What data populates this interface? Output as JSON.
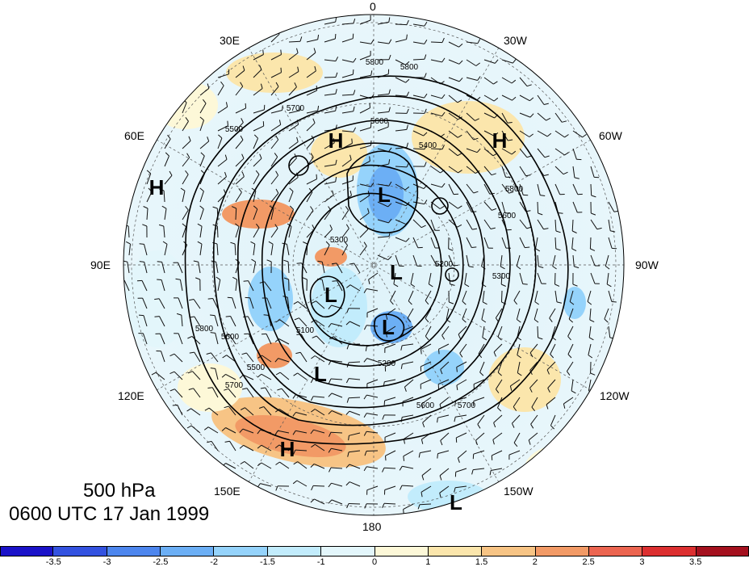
{
  "map": {
    "projection": "north-polar-stereographic",
    "level_label": "500 hPa",
    "time_label": "0600 UTC 17 Jan 1999",
    "longitude_labels": [
      "0",
      "30E",
      "60E",
      "90E",
      "120E",
      "150E",
      "180",
      "150W",
      "120W",
      "90W",
      "60W",
      "30W"
    ],
    "contour_labels": [
      "5800",
      "5800",
      "5700",
      "5600",
      "5500",
      "5400",
      "5300",
      "5200",
      "5100",
      "5500",
      "5600",
      "5700",
      "5800",
      "5300",
      "5200",
      "5600",
      "5800",
      "5700",
      "5600"
    ],
    "pressure_centers": [
      {
        "label": "H",
        "name": "high-center-scandinavia"
      },
      {
        "label": "H",
        "name": "high-center-atlantic"
      },
      {
        "label": "H",
        "name": "high-center-west-asia"
      },
      {
        "label": "L",
        "name": "low-center-greenland"
      },
      {
        "label": "L",
        "name": "low-center-arctic"
      },
      {
        "label": "L",
        "name": "low-center-siberia"
      },
      {
        "label": "L",
        "name": "low-center-east-siberia"
      },
      {
        "label": "L",
        "name": "low-center-north-asia"
      },
      {
        "label": "H",
        "name": "high-center-north-pacific"
      },
      {
        "label": "L",
        "name": "low-center-pacific"
      }
    ]
  },
  "colorbar": {
    "colors": [
      "#1a12c9",
      "#3352e0",
      "#4d86ee",
      "#6caff5",
      "#95d3fb",
      "#c2ecfc",
      "#e3f6fb",
      "#fdf8d8",
      "#fbe6ac",
      "#f7c485",
      "#f29a66",
      "#ec6550",
      "#dc2f30",
      "#a4101e"
    ],
    "tick_labels": [
      "-3.5",
      "-3",
      "-2.5",
      "-2",
      "-1.5",
      "-1",
      "0",
      "1",
      "1.5",
      "2",
      "2.5",
      "3",
      "3.5"
    ]
  }
}
